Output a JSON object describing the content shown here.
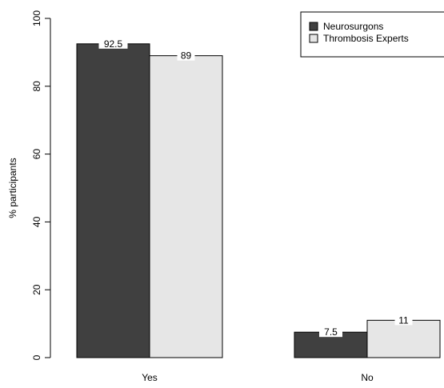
{
  "chart_data": {
    "type": "bar",
    "categories": [
      "Yes",
      "No"
    ],
    "series": [
      {
        "name": "Neurosurgons",
        "values": [
          92.5,
          7.5
        ],
        "labels": [
          "92.5",
          "7.5"
        ],
        "color": "#404040"
      },
      {
        "name": "Thrombosis Experts",
        "values": [
          89,
          11
        ],
        "labels": [
          "89",
          "11"
        ],
        "color": "#e6e6e6"
      }
    ],
    "ylabel": "% participants",
    "xlabel": "",
    "ylim": [
      0,
      100
    ],
    "yticks": [
      0,
      20,
      40,
      60,
      80,
      100
    ],
    "grid": false,
    "legend": "top-right"
  }
}
